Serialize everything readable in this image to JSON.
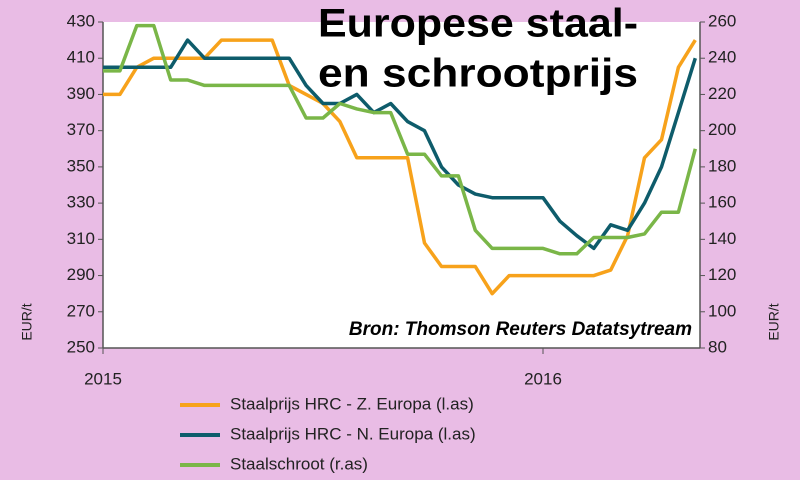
{
  "chart_data": {
    "type": "line",
    "title": [
      "Europese staal-",
      "en schrootprijs"
    ],
    "annotation": "Bron: Thomson Reuters Datatsytream",
    "ylabel": "EUR/t",
    "y2label": "EUR/t",
    "categories": [
      "2015",
      null,
      null,
      null,
      null,
      null,
      null,
      null,
      null,
      null,
      null,
      null,
      null,
      null,
      null,
      null,
      null,
      null,
      null,
      null,
      null,
      null,
      null,
      null,
      null,
      null,
      "2016",
      null,
      null,
      null,
      null,
      null,
      null,
      null,
      null,
      null
    ],
    "ylim": [
      250,
      430
    ],
    "yticks": [
      250,
      270,
      290,
      310,
      330,
      350,
      370,
      390,
      410,
      430
    ],
    "y2lim": [
      80,
      260
    ],
    "y2ticks": [
      80,
      100,
      120,
      140,
      160,
      180,
      200,
      220,
      240,
      260
    ],
    "legend": "bottom",
    "series": [
      {
        "name": "Staalprijs HRC - Z. Europa (l.as)",
        "color": "#f7a21b",
        "axis": "y",
        "values": [
          390,
          390,
          405,
          410,
          410,
          410,
          410,
          420,
          420,
          420,
          420,
          395,
          390,
          385,
          375,
          355,
          355,
          355,
          355,
          308,
          295,
          295,
          295,
          280,
          290,
          290,
          290,
          290,
          290,
          290,
          293,
          312,
          355,
          365,
          405,
          420
        ]
      },
      {
        "name": "Staalprijs HRC - N. Europa (l.as)",
        "color": "#0e5c6b",
        "axis": "y",
        "values": [
          405,
          405,
          405,
          405,
          405,
          420,
          410,
          410,
          410,
          410,
          410,
          410,
          395,
          385,
          385,
          390,
          380,
          385,
          375,
          370,
          350,
          340,
          335,
          333,
          333,
          333,
          333,
          320,
          312,
          305,
          318,
          315,
          330,
          350,
          380,
          410
        ]
      },
      {
        "name": "Staalschroot (r.as)",
        "color": "#7ab648",
        "axis": "y2",
        "values": [
          233,
          233,
          258,
          258,
          228,
          228,
          225,
          225,
          225,
          225,
          225,
          225,
          207,
          207,
          215,
          212,
          210,
          210,
          187,
          187,
          175,
          175,
          145,
          135,
          135,
          135,
          135,
          132,
          132,
          141,
          141,
          141,
          143,
          155,
          155,
          190
        ]
      }
    ]
  }
}
